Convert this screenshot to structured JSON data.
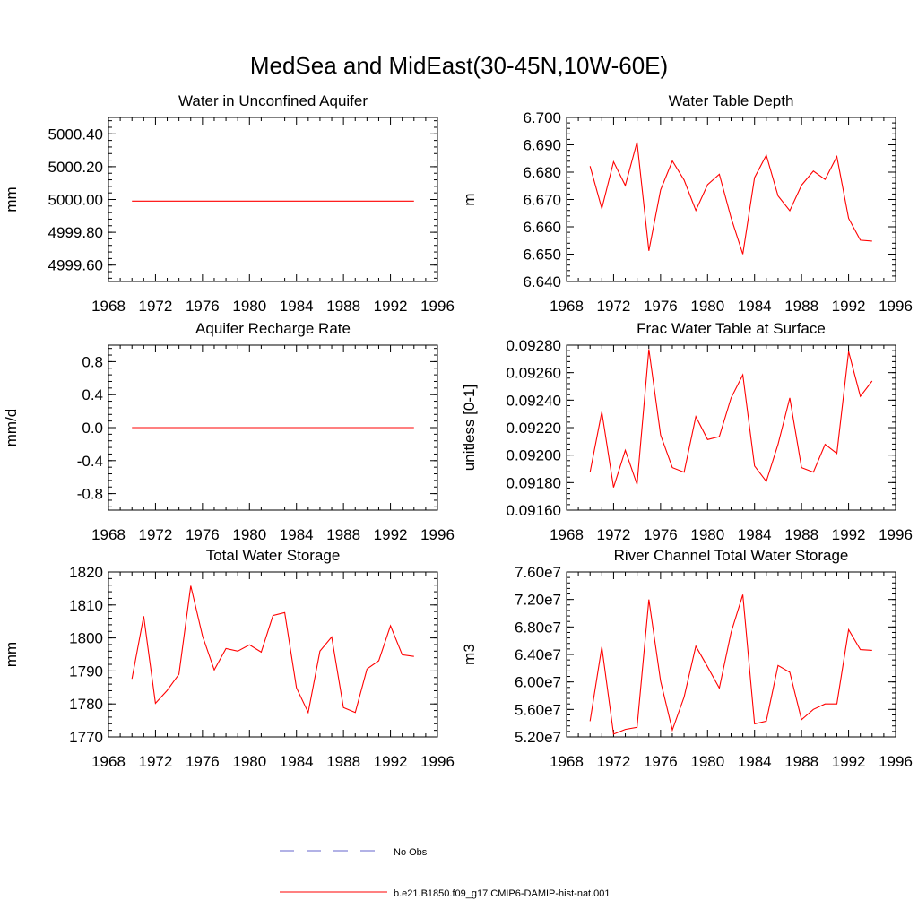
{
  "figure": {
    "title": "MedSea and MidEast(30-45N,10W-60E)"
  },
  "legend": {
    "entries": [
      {
        "label": "No Obs",
        "color": "#6666cc",
        "dash": "dashed"
      },
      {
        "label": "b.e21.B1850.f09_g17.CMIP6-DAMIP-hist-nat.001",
        "color": "#ff0000",
        "dash": "solid"
      }
    ]
  },
  "chart_data": [
    {
      "type": "line",
      "title": "Water in Unconfined Aquifer",
      "xlabel": "",
      "ylabel": "mm",
      "xlim": [
        1968,
        1996
      ],
      "ylim": [
        4999.5,
        5000.5
      ],
      "xticks": [
        "1968",
        "1972",
        "1976",
        "1980",
        "1984",
        "1988",
        "1992",
        "1996"
      ],
      "yticks": [
        {
          "v": 4999.6,
          "label": "4999.60"
        },
        {
          "v": 4999.8,
          "label": "4999.80"
        },
        {
          "v": 5000.0,
          "label": "5000.00"
        },
        {
          "v": 5000.2,
          "label": "5000.20"
        },
        {
          "v": 5000.4,
          "label": "5000.40"
        }
      ],
      "x": [
        1970,
        1971,
        1972,
        1973,
        1974,
        1975,
        1976,
        1977,
        1978,
        1979,
        1980,
        1981,
        1982,
        1983,
        1984,
        1985,
        1986,
        1987,
        1988,
        1989,
        1990,
        1991,
        1992,
        1993,
        1994
      ],
      "series": [
        {
          "color": "#ff0000",
          "values": [
            4999.99,
            4999.99,
            4999.99,
            4999.99,
            4999.99,
            4999.99,
            4999.99,
            4999.99,
            4999.99,
            4999.99,
            4999.99,
            4999.99,
            4999.99,
            4999.99,
            4999.99,
            4999.99,
            4999.99,
            4999.99,
            4999.99,
            4999.99,
            4999.99,
            4999.99,
            4999.99,
            4999.99,
            4999.99
          ]
        }
      ]
    },
    {
      "type": "line",
      "title": "Water Table Depth",
      "xlabel": "",
      "ylabel": "m",
      "xlim": [
        1968,
        1996
      ],
      "ylim": [
        6.64,
        6.7
      ],
      "xticks": [
        "1968",
        "1972",
        "1976",
        "1980",
        "1984",
        "1988",
        "1992",
        "1996"
      ],
      "yticks": [
        {
          "v": 6.64,
          "label": "6.640"
        },
        {
          "v": 6.65,
          "label": "6.650"
        },
        {
          "v": 6.66,
          "label": "6.660"
        },
        {
          "v": 6.67,
          "label": "6.670"
        },
        {
          "v": 6.68,
          "label": "6.680"
        },
        {
          "v": 6.69,
          "label": "6.690"
        },
        {
          "v": 6.7,
          "label": "6.700"
        }
      ],
      "x": [
        1970,
        1971,
        1972,
        1973,
        1974,
        1975,
        1976,
        1977,
        1978,
        1979,
        1980,
        1981,
        1982,
        1983,
        1984,
        1985,
        1986,
        1987,
        1988,
        1989,
        1990,
        1991,
        1992,
        1993,
        1994
      ],
      "series": [
        {
          "color": "#ff0000",
          "values": [
            6.6822,
            6.6667,
            6.6838,
            6.6751,
            6.691,
            6.6512,
            6.6735,
            6.6841,
            6.6771,
            6.666,
            6.6754,
            6.6792,
            6.6633,
            6.65,
            6.678,
            6.6862,
            6.6713,
            6.6659,
            6.6752,
            6.6804,
            6.6773,
            6.6857,
            6.6631,
            6.6551,
            6.6548
          ]
        }
      ]
    },
    {
      "type": "line",
      "title": "Aquifer Recharge Rate",
      "xlabel": "",
      "ylabel": "mm/d",
      "xlim": [
        1968,
        1996
      ],
      "ylim": [
        -1.0,
        1.0
      ],
      "xticks": [
        "1968",
        "1972",
        "1976",
        "1980",
        "1984",
        "1988",
        "1992",
        "1996"
      ],
      "yticks": [
        {
          "v": -0.8,
          "label": "-0.8"
        },
        {
          "v": -0.4,
          "label": "-0.4"
        },
        {
          "v": 0.0,
          "label": "0.0"
        },
        {
          "v": 0.4,
          "label": "0.4"
        },
        {
          "v": 0.8,
          "label": "0.8"
        }
      ],
      "x": [
        1970,
        1971,
        1972,
        1973,
        1974,
        1975,
        1976,
        1977,
        1978,
        1979,
        1980,
        1981,
        1982,
        1983,
        1984,
        1985,
        1986,
        1987,
        1988,
        1989,
        1990,
        1991,
        1992,
        1993,
        1994
      ],
      "series": [
        {
          "color": "#ff0000",
          "values": [
            0,
            0,
            0,
            0,
            0,
            0,
            0,
            0,
            0,
            0,
            0,
            0,
            0,
            0,
            0,
            0,
            0,
            0,
            0,
            0,
            0,
            0,
            0,
            0,
            0
          ]
        }
      ]
    },
    {
      "type": "line",
      "title": "Frac Water Table at Surface",
      "xlabel": "",
      "ylabel": "unitless [0-1]",
      "xlim": [
        1968,
        1996
      ],
      "ylim": [
        0.0916,
        0.0928
      ],
      "xticks": [
        "1968",
        "1972",
        "1976",
        "1980",
        "1984",
        "1988",
        "1992",
        "1996"
      ],
      "yticks": [
        {
          "v": 0.0916,
          "label": "0.09160"
        },
        {
          "v": 0.0918,
          "label": "0.09180"
        },
        {
          "v": 0.092,
          "label": "0.09200"
        },
        {
          "v": 0.0922,
          "label": "0.09220"
        },
        {
          "v": 0.0924,
          "label": "0.09240"
        },
        {
          "v": 0.0926,
          "label": "0.09260"
        },
        {
          "v": 0.0928,
          "label": "0.09280"
        }
      ],
      "x": [
        1970,
        1971,
        1972,
        1973,
        1974,
        1975,
        1976,
        1977,
        1978,
        1979,
        1980,
        1981,
        1982,
        1983,
        1984,
        1985,
        1986,
        1987,
        1988,
        1989,
        1990,
        1991,
        1992,
        1993,
        1994
      ],
      "series": [
        {
          "color": "#ff0000",
          "values": [
            0.091876,
            0.092315,
            0.091765,
            0.092035,
            0.091787,
            0.09277,
            0.092146,
            0.091909,
            0.091876,
            0.092281,
            0.092113,
            0.092135,
            0.092416,
            0.092584,
            0.091921,
            0.091809,
            0.092079,
            0.092416,
            0.091909,
            0.091876,
            0.092079,
            0.092012,
            0.092753,
            0.092427,
            0.092539
          ]
        }
      ]
    },
    {
      "type": "line",
      "title": "Total Water Storage",
      "xlabel": "",
      "ylabel": "mm",
      "xlim": [
        1968,
        1996
      ],
      "ylim": [
        1770,
        1820
      ],
      "xticks": [
        "1968",
        "1972",
        "1976",
        "1980",
        "1984",
        "1988",
        "1992",
        "1996"
      ],
      "yticks": [
        {
          "v": 1770,
          "label": "1770"
        },
        {
          "v": 1780,
          "label": "1780"
        },
        {
          "v": 1790,
          "label": "1790"
        },
        {
          "v": 1800,
          "label": "1800"
        },
        {
          "v": 1810,
          "label": "1810"
        },
        {
          "v": 1820,
          "label": "1820"
        }
      ],
      "x": [
        1970,
        1971,
        1972,
        1973,
        1974,
        1975,
        1976,
        1977,
        1978,
        1979,
        1980,
        1981,
        1982,
        1983,
        1984,
        1985,
        1986,
        1987,
        1988,
        1989,
        1990,
        1991,
        1992,
        1993,
        1994
      ],
      "series": [
        {
          "color": "#ff0000",
          "values": [
            1787.6,
            1806.6,
            1780.2,
            1784.1,
            1789.0,
            1815.8,
            1800.6,
            1790.3,
            1796.8,
            1796.0,
            1797.9,
            1795.7,
            1806.8,
            1807.7,
            1784.9,
            1777.4,
            1796.0,
            1800.3,
            1778.9,
            1777.4,
            1790.6,
            1793.1,
            1803.7,
            1794.9,
            1794.4
          ]
        }
      ]
    },
    {
      "type": "line",
      "title": "River Channel Total Water Storage",
      "xlabel": "",
      "ylabel": "m3",
      "xlim": [
        1968,
        1996
      ],
      "ylim": [
        52000000,
        76000000
      ],
      "xticks": [
        "1968",
        "1972",
        "1976",
        "1980",
        "1984",
        "1988",
        "1992",
        "1996"
      ],
      "yticks": [
        {
          "v": 52000000,
          "label": "5.20e7"
        },
        {
          "v": 56000000,
          "label": "5.60e7"
        },
        {
          "v": 60000000,
          "label": "6.00e7"
        },
        {
          "v": 64000000,
          "label": "6.40e7"
        },
        {
          "v": 68000000,
          "label": "6.80e7"
        },
        {
          "v": 72000000,
          "label": "7.20e7"
        },
        {
          "v": 76000000,
          "label": "7.60e7"
        }
      ],
      "x": [
        1970,
        1971,
        1972,
        1973,
        1974,
        1975,
        1976,
        1977,
        1978,
        1979,
        1980,
        1981,
        1982,
        1983,
        1984,
        1985,
        1986,
        1987,
        1988,
        1989,
        1990,
        1991,
        1992,
        1993,
        1994
      ],
      "series": [
        {
          "color": "#ff0000",
          "values": [
            54300000,
            65100000,
            52400000,
            53100000,
            53400000,
            72000000,
            60100000,
            53000000,
            57800000,
            65200000,
            62200000,
            59100000,
            67200000,
            72700000,
            53900000,
            54300000,
            62400000,
            61400000,
            54500000,
            56000000,
            56800000,
            56800000,
            67600000,
            64700000,
            64600000
          ]
        }
      ]
    }
  ]
}
